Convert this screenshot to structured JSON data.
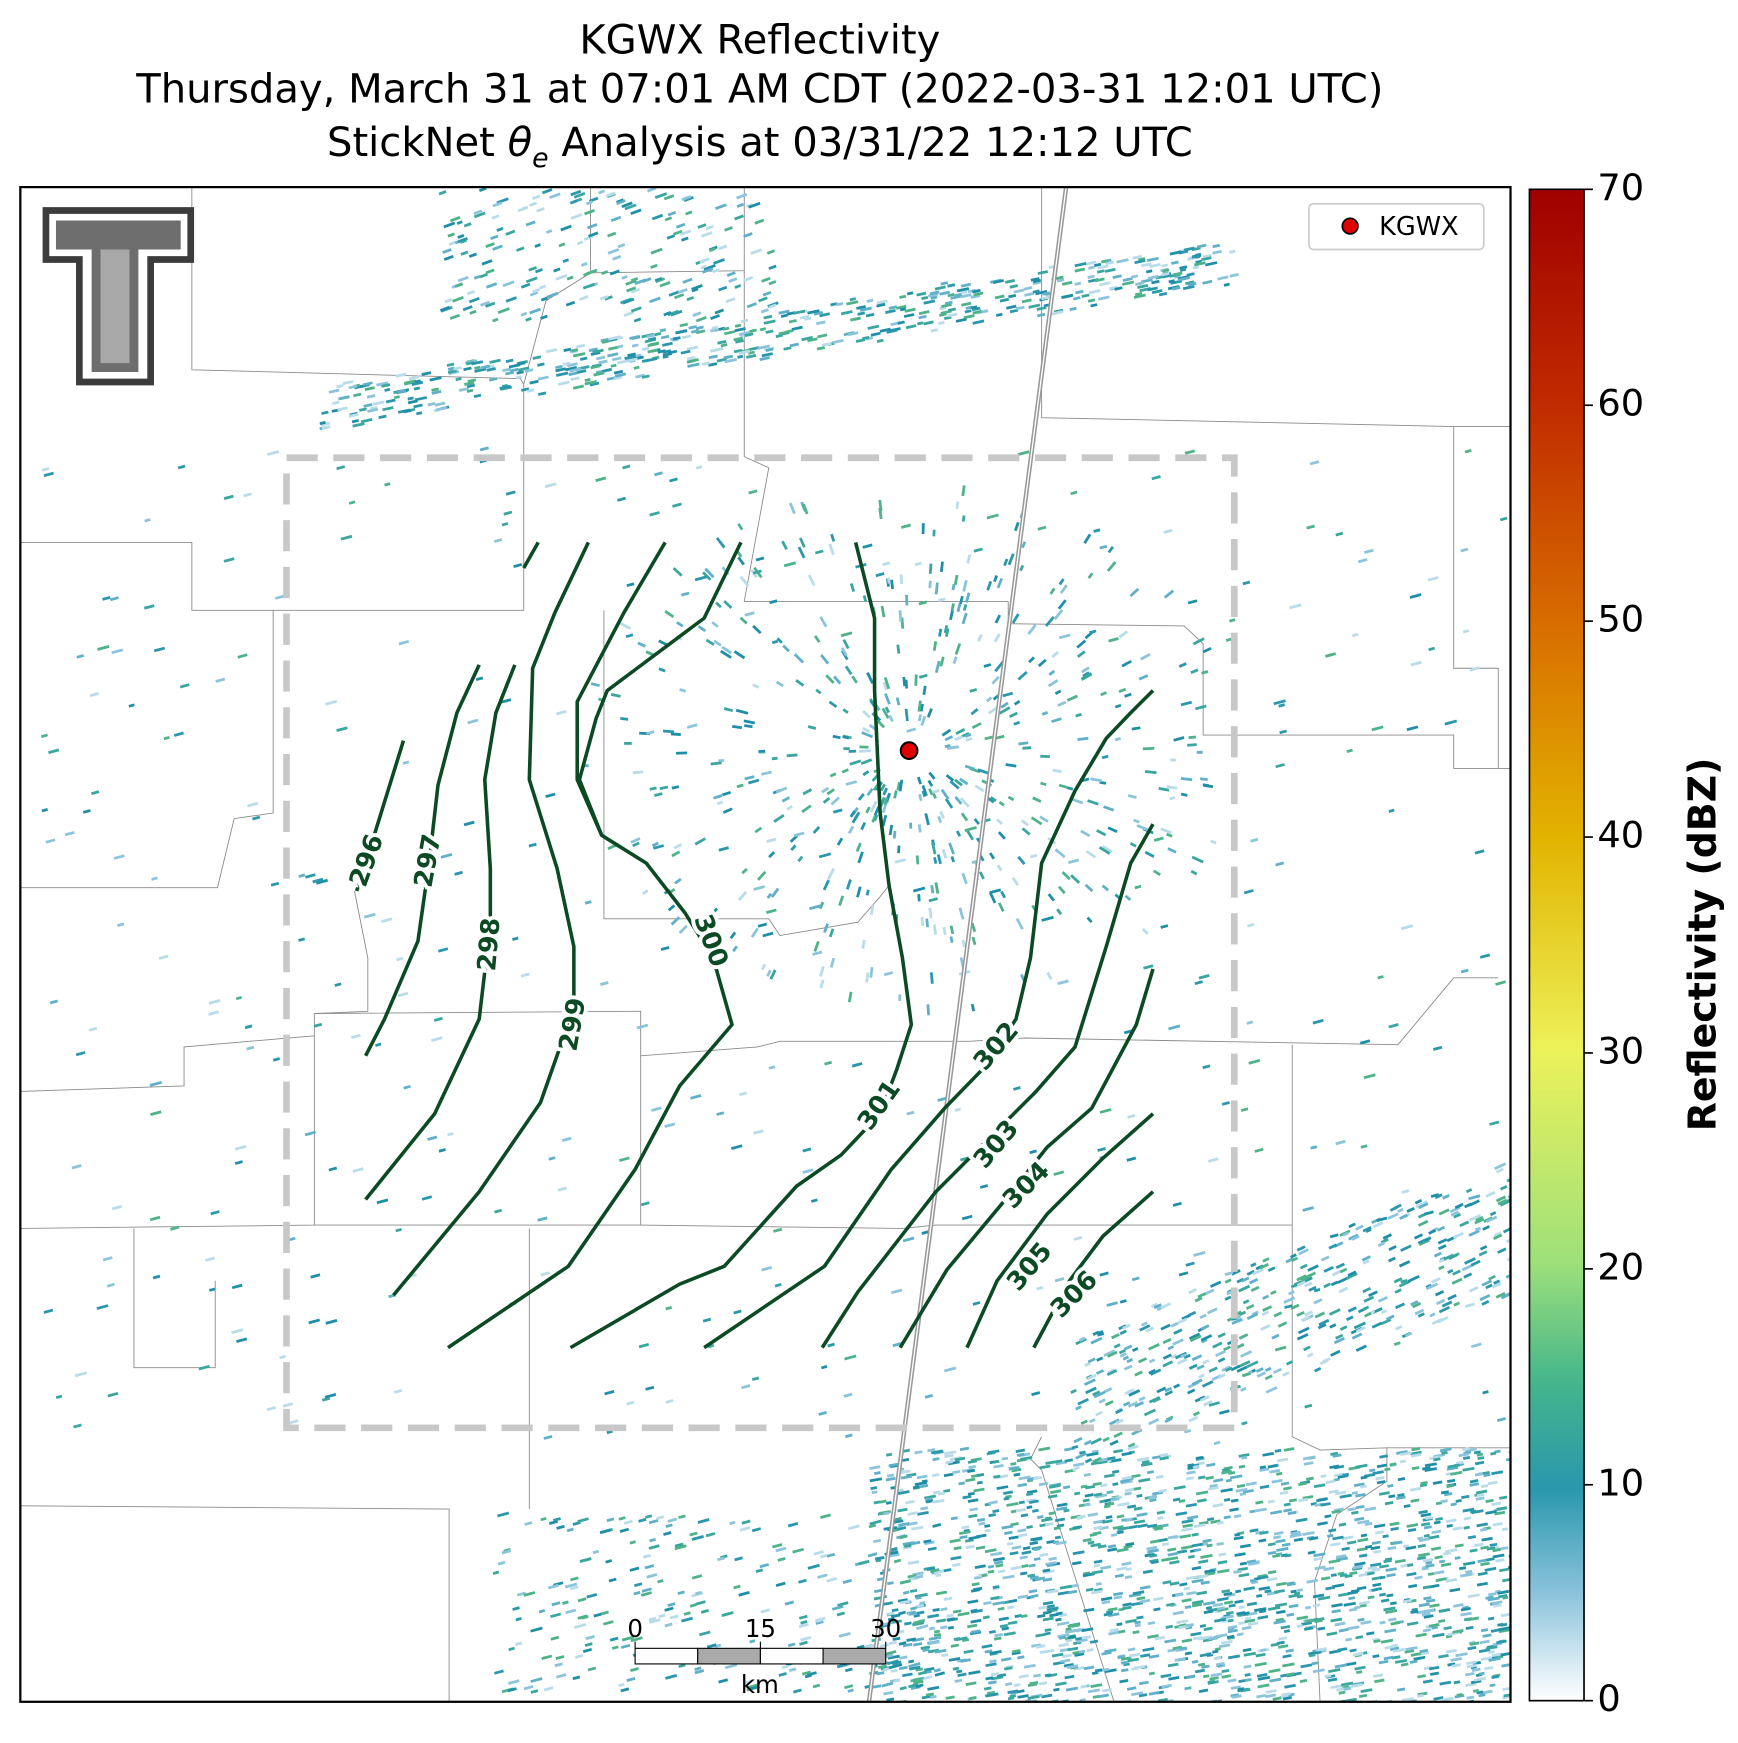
{
  "title": {
    "line1": "KGWX Reflectivity",
    "line2": "Thursday, March 31 at 07:01 AM CDT (2022-03-31 12:01 UTC)",
    "line3_prefix": "StickNet ",
    "line3_symbol": "θ",
    "line3_subscript": "e",
    "line3_suffix": " Analysis at 03/31/22 12:12 UTC"
  },
  "legend": {
    "label": "KGWX",
    "color": "#e00000"
  },
  "colorbar": {
    "label": "Reflectivity (dBZ)",
    "lim": [
      0,
      70
    ],
    "ticks": [
      0,
      10,
      20,
      30,
      40,
      50,
      60,
      70
    ]
  },
  "contours": {
    "color": "#0b4a22",
    "labels": [
      296,
      297,
      298,
      299,
      300,
      301,
      302,
      303,
      304,
      305,
      306
    ]
  },
  "scale_bar": {
    "lim": [
      0,
      30
    ],
    "ticks": [
      0,
      15,
      30
    ],
    "unit": "km"
  }
}
